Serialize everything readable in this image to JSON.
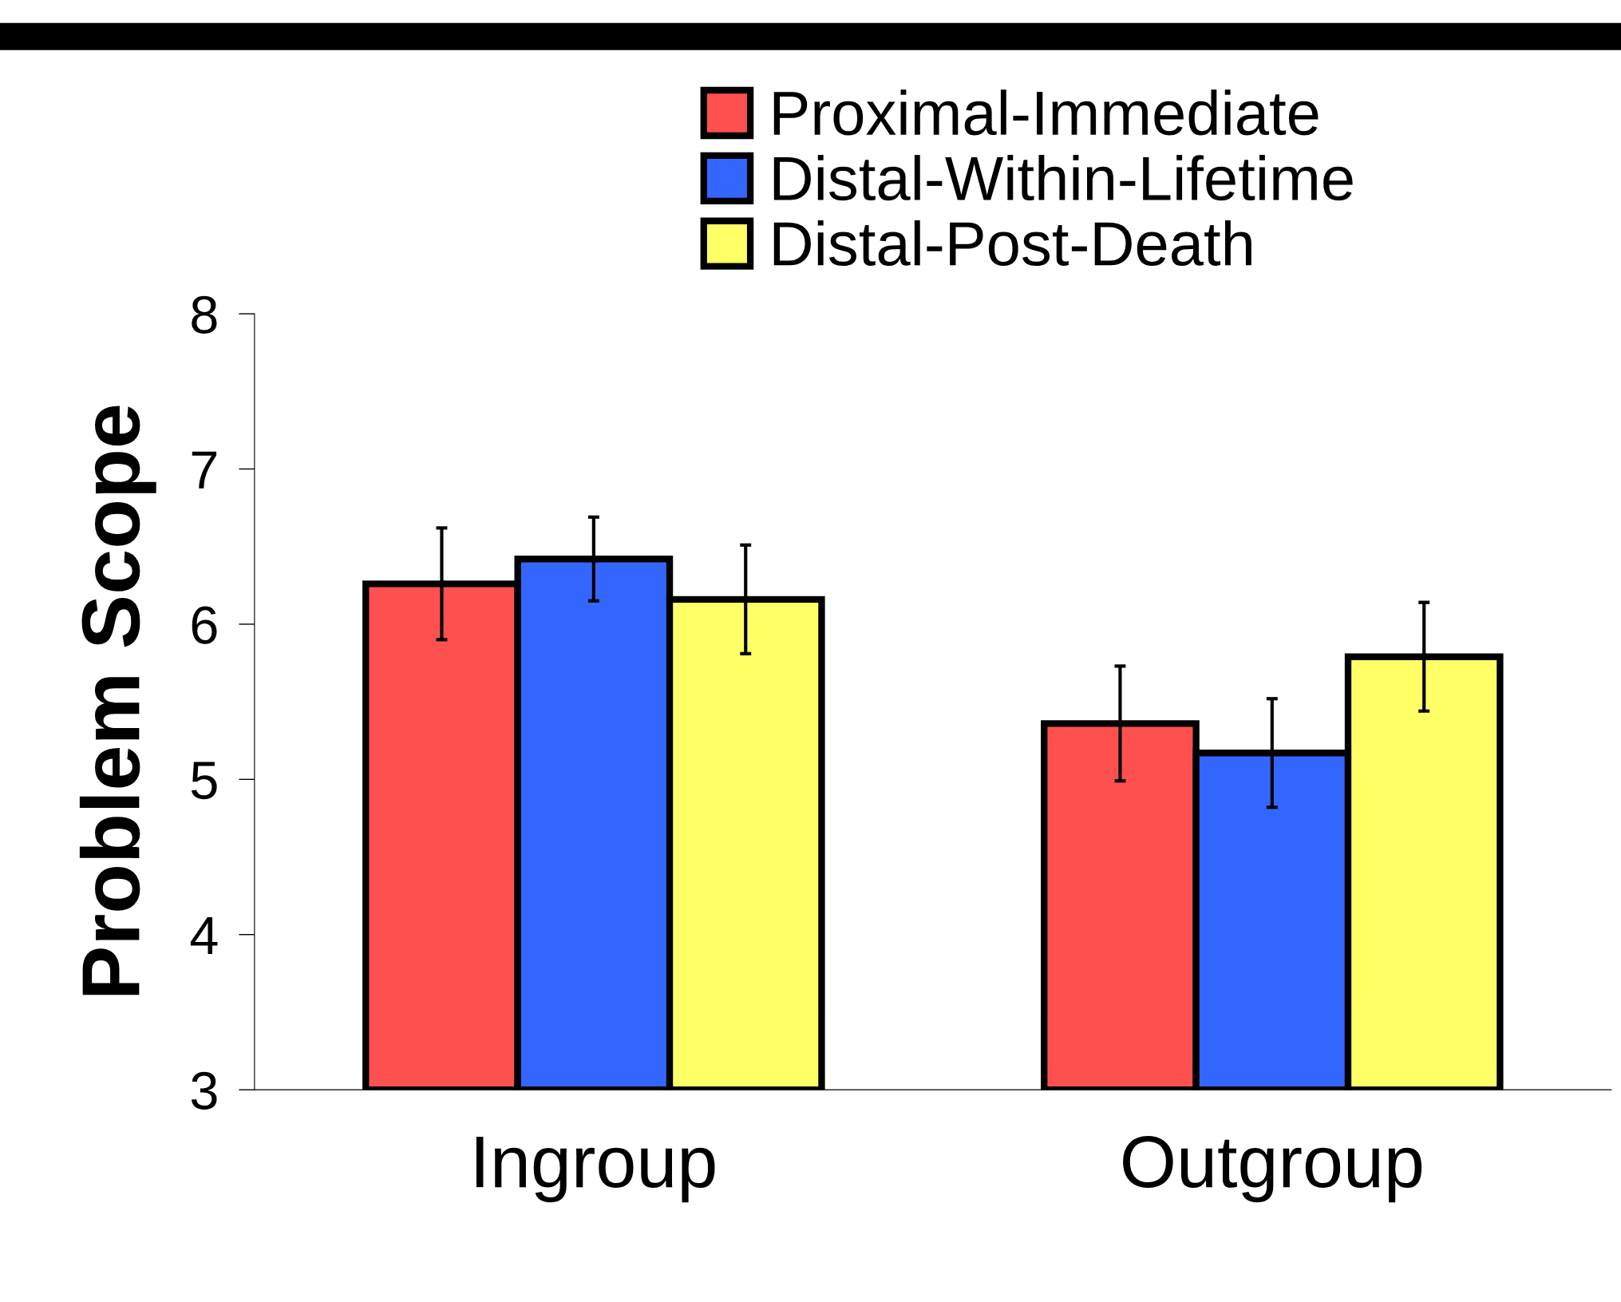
{
  "chart_data": {
    "type": "bar",
    "ylabel": "Problem Scope",
    "categories": [
      "Ingroup",
      "Outgroup"
    ],
    "series": [
      {
        "name": "Proximal-Immediate",
        "color": "#ff5050",
        "values": [
          6.26,
          5.36
        ],
        "errors": [
          0.36,
          0.37
        ]
      },
      {
        "name": "Distal-Within-Lifetime",
        "color": "#3366ff",
        "values": [
          6.42,
          5.17
        ],
        "errors": [
          0.27,
          0.35
        ]
      },
      {
        "name": "Distal-Post-Death",
        "color": "#ffff66",
        "values": [
          6.16,
          5.79
        ],
        "errors": [
          0.35,
          0.35
        ]
      }
    ],
    "ylim": [
      3,
      8
    ],
    "yticks": [
      3,
      4,
      5,
      6,
      7,
      8
    ],
    "grid": false,
    "legend": "top"
  }
}
